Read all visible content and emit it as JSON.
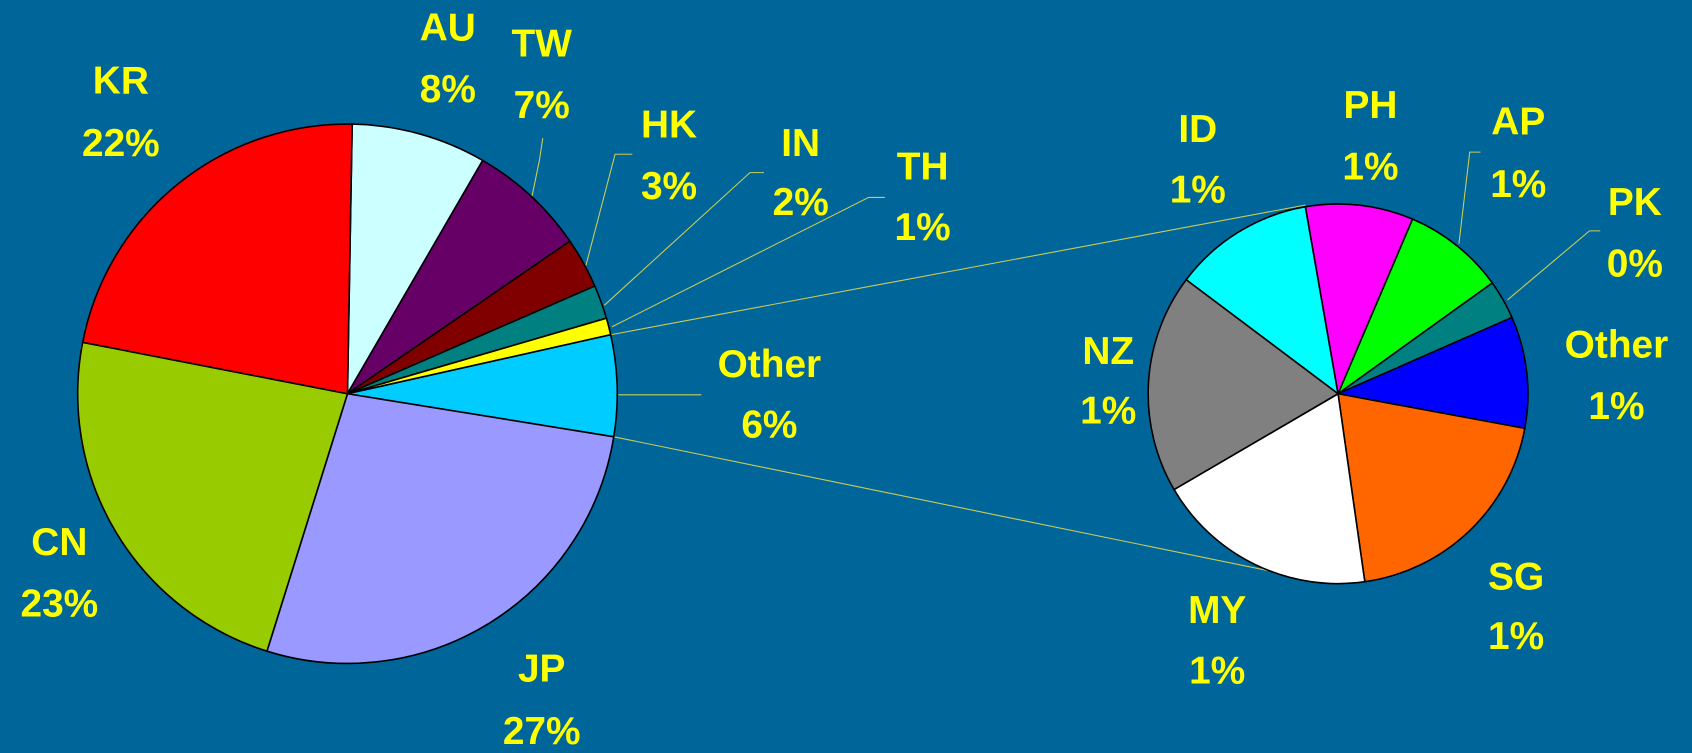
{
  "chart_data": {
    "type": "pie-of-pie",
    "categories": [
      "AU",
      "TW",
      "HK",
      "IN",
      "TH",
      "Other",
      "JP",
      "CN",
      "KR"
    ],
    "values": [
      8,
      7,
      3,
      2,
      1,
      6,
      27,
      23,
      22
    ],
    "value_labels": [
      "8%",
      "7%",
      "3%",
      "2%",
      "1%",
      "6%",
      "27%",
      "23%",
      "22%"
    ],
    "colors": [
      "#ccffff",
      "#660066",
      "#800000",
      "#008080",
      "#ffff00",
      "#00ccff",
      "#9999ff",
      "#99cc00",
      "#ff0000"
    ],
    "detail": {
      "categories": [
        "ID",
        "PH",
        "AP",
        "PK",
        "Other",
        "SG",
        "MY",
        "NZ"
      ],
      "values": [
        0.72,
        0.55,
        0.52,
        0.2,
        0.57,
        1.19,
        1.13,
        1.12
      ],
      "value_labels": [
        "1%",
        "1%",
        "1%",
        "0%",
        "1%",
        "1%",
        "1%",
        "1%"
      ],
      "colors": [
        "#00ffff",
        "#ff00ff",
        "#00ff00",
        "#008080",
        "#0000ff",
        "#ff6600",
        "#ffffff",
        "#808080"
      ]
    }
  }
}
